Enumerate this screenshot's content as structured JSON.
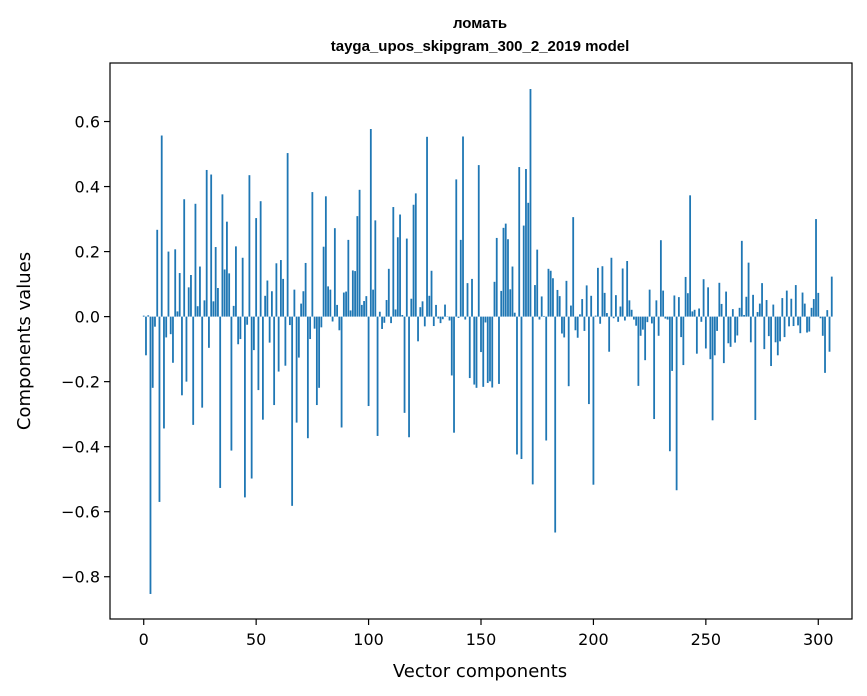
{
  "chart_data": {
    "type": "bar",
    "title": "ломать",
    "subtitle": "tayga_upos_skipgram_300_2_2019 model",
    "xlabel": "Vector components",
    "ylabel": "Components values",
    "xlim": [
      -15,
      315
    ],
    "ylim": [
      -0.93,
      0.78
    ],
    "xticks": [
      0,
      50,
      100,
      150,
      200,
      250,
      300
    ],
    "xtick_labels": [
      "0",
      "50",
      "100",
      "150",
      "200",
      "250",
      "300"
    ],
    "yticks": [
      -0.8,
      -0.6,
      -0.4,
      -0.2,
      0.0,
      0.2,
      0.4,
      0.6
    ],
    "ytick_labels": [
      "−0.8",
      "−0.6",
      "−0.4",
      "−0.2",
      "0.0",
      "0.2",
      "0.4",
      "0.6"
    ],
    "grid": false,
    "bar_color": "#1f77b4",
    "values": [
      0.003,
      -0.119,
      0.004,
      -0.853,
      -0.219,
      -0.031,
      0.267,
      -0.57,
      0.557,
      -0.344,
      -0.064,
      0.2,
      -0.054,
      -0.142,
      0.207,
      0.016,
      0.134,
      -0.242,
      0.361,
      -0.2,
      0.09,
      0.128,
      -0.333,
      0.347,
      0.032,
      0.154,
      -0.28,
      0.05,
      0.451,
      -0.096,
      0.437,
      0.047,
      0.214,
      0.088,
      -0.527,
      0.376,
      0.145,
      0.292,
      0.133,
      -0.412,
      0.033,
      0.216,
      -0.085,
      -0.069,
      0.181,
      -0.556,
      -0.025,
      0.435,
      -0.498,
      -0.103,
      0.303,
      -0.226,
      0.355,
      -0.317,
      0.064,
      0.111,
      -0.08,
      0.078,
      -0.272,
      0.164,
      -0.169,
      0.174,
      0.116,
      -0.151,
      0.503,
      -0.026,
      -0.582,
      0.083,
      -0.326,
      -0.126,
      0.04,
      0.078,
      0.165,
      -0.374,
      -0.069,
      0.383,
      -0.037,
      -0.272,
      -0.219,
      -0.033,
      0.215,
      0.37,
      0.093,
      0.083,
      -0.015,
      0.272,
      0.036,
      -0.042,
      -0.341,
      0.074,
      0.077,
      0.236,
      0.019,
      0.142,
      0.14,
      0.309,
      0.39,
      0.036,
      0.048,
      0.063,
      -0.275,
      0.577,
      0.083,
      0.296,
      -0.367,
      0.015,
      -0.038,
      -0.019,
      0.051,
      0.147,
      -0.02,
      0.337,
      0.022,
      0.244,
      0.314,
      0.005,
      -0.296,
      0.24,
      -0.371,
      0.055,
      0.344,
      0.379,
      -0.076,
      0.029,
      0.047,
      -0.03,
      0.553,
      0.064,
      0.141,
      -0.029,
      0.036,
      -0.006,
      -0.02,
      -0.008,
      0.037,
      0.001,
      -0.012,
      -0.181,
      -0.357,
      0.422,
      -0.004,
      0.236,
      0.554,
      -0.009,
      0.103,
      -0.189,
      0.116,
      -0.209,
      -0.219,
      0.466,
      -0.109,
      -0.216,
      -0.018,
      -0.204,
      -0.199,
      -0.218,
      0.107,
      0.242,
      -0.207,
      0.079,
      0.273,
      0.286,
      0.238,
      0.084,
      0.154,
      0.012,
      -0.424,
      0.46,
      -0.438,
      0.28,
      0.454,
      0.35,
      0.7,
      -0.516,
      0.097,
      0.206,
      -0.009,
      0.062,
      0.002,
      -0.381,
      0.147,
      0.141,
      0.118,
      -0.664,
      0.082,
      0.063,
      -0.052,
      -0.064,
      0.11,
      -0.214,
      0.034,
      0.306,
      -0.042,
      -0.065,
      0.007,
      0.054,
      -0.044,
      0.096,
      -0.269,
      0.064,
      -0.517,
      0.003,
      0.15,
      -0.022,
      0.155,
      0.073,
      0.011,
      -0.108,
      0.181,
      -0.005,
      0.066,
      -0.016,
      0.031,
      0.148,
      -0.012,
      0.171,
      0.05,
      0.021,
      -0.009,
      -0.028,
      -0.213,
      -0.059,
      -0.04,
      -0.134,
      -0.017,
      0.083,
      -0.021,
      -0.315,
      0.05,
      -0.059,
      0.235,
      0.08,
      -0.006,
      -0.009,
      -0.414,
      -0.167,
      0.065,
      -0.534,
      0.06,
      -0.063,
      -0.149,
      0.122,
      0.072,
      0.373,
      0.016,
      0.021,
      -0.114,
      0.025,
      -0.016,
      0.115,
      -0.098,
      0.09,
      -0.131,
      -0.319,
      -0.119,
      -0.044,
      0.104,
      0.039,
      -0.143,
      0.077,
      -0.082,
      -0.093,
      0.023,
      -0.08,
      -0.058,
      0.027,
      0.233,
      0.005,
      0.061,
      0.166,
      -0.079,
      0.067,
      -0.318,
      0.014,
      0.04,
      0.103,
      -0.1,
      0.051,
      -0.06,
      -0.152,
      0.037,
      -0.079,
      -0.119,
      -0.076,
      0.057,
      -0.063,
      0.08,
      -0.03,
      0.055,
      -0.029,
      0.097,
      -0.027,
      -0.051,
      0.074,
      0.04,
      -0.049,
      -0.046,
      0.027,
      0.054,
      0.3,
      0.073,
      -0.005,
      -0.059,
      -0.173,
      0.02,
      -0.108,
      0.123
    ]
  }
}
